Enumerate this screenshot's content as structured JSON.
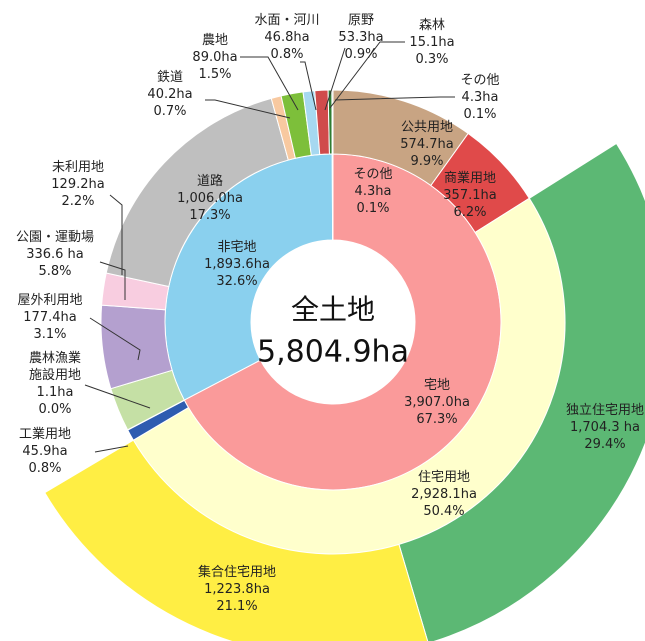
{
  "chart_data": {
    "type": "sunburst",
    "title": "全土地",
    "total": 5804.9,
    "total_label": "5,804.9ha",
    "rings": [
      {
        "categories": [
          "宅地",
          "非宅地",
          "その他"
        ],
        "values": [
          3907.0,
          1893.6,
          4.3
        ],
        "value_labels": [
          "3,907.0ha",
          "1,893.6ha",
          "4.3ha"
        ],
        "shares": [
          67.3,
          32.6,
          0.1
        ],
        "share_labels": [
          "67.3%",
          "32.6%",
          "0.1%"
        ],
        "colors": [
          "#fa9a9a",
          "#8ad0ee",
          "#f4f4f4"
        ]
      },
      {
        "categories": [
          "公共用地",
          "商業用地",
          "住宅用地",
          "工業用地",
          "農林漁業施設用地",
          "屋外利用地",
          "公園・運動場",
          "未利用地",
          "道路",
          "鉄道",
          "農地",
          "水面・河川",
          "原野",
          "森林",
          "その他"
        ],
        "values": [
          574.7,
          357.1,
          2928.1,
          45.9,
          1.1,
          177.4,
          336.6,
          129.2,
          1006.0,
          40.2,
          89.0,
          46.8,
          53.3,
          15.1,
          4.3
        ],
        "value_labels": [
          "574.7ha",
          "357.1ha",
          "2,928.1ha",
          "45.9ha",
          "1.1ha",
          "177.4ha",
          "336.6 ha",
          "129.2ha",
          "1,006.0ha",
          "40.2ha",
          "89.0ha",
          "46.8ha",
          "53.3ha",
          "15.1ha",
          "4.3ha"
        ],
        "shares": [
          9.9,
          6.2,
          50.4,
          0.8,
          0.0,
          3.1,
          5.8,
          2.2,
          17.3,
          0.7,
          1.5,
          0.8,
          0.9,
          0.3,
          0.1
        ],
        "share_labels": [
          "9.9%",
          "6.2%",
          "50.4%",
          "0.8%",
          "0.0%",
          "3.1%",
          "5.8%",
          "2.2%",
          "17.3%",
          "0.7%",
          "1.5%",
          "0.8%",
          "0.9%",
          "0.3%",
          "0.1%"
        ],
        "colors": [
          "#c8a483",
          "#e04a4a",
          "#ffffcc",
          "#2e5cb0",
          "#a8d08d",
          "#c5e0a5",
          "#b4a0cf",
          "#f8cde0",
          "#bfbfbf",
          "#f8c9a0",
          "#7dbf3a",
          "#a6d8f0",
          "#d04b4b",
          "#2e7d32",
          "#444444"
        ]
      },
      {
        "categories": [
          "独立住宅用地",
          "集合住宅用地"
        ],
        "values": [
          1704.3,
          1223.8
        ],
        "value_labels": [
          "1,704.3 ha",
          "1,223.8ha"
        ],
        "shares": [
          29.4,
          21.1
        ],
        "share_labels": [
          "29.4%",
          "21.1%"
        ],
        "colors": [
          "#5cb874",
          "#ffee44"
        ]
      }
    ]
  }
}
